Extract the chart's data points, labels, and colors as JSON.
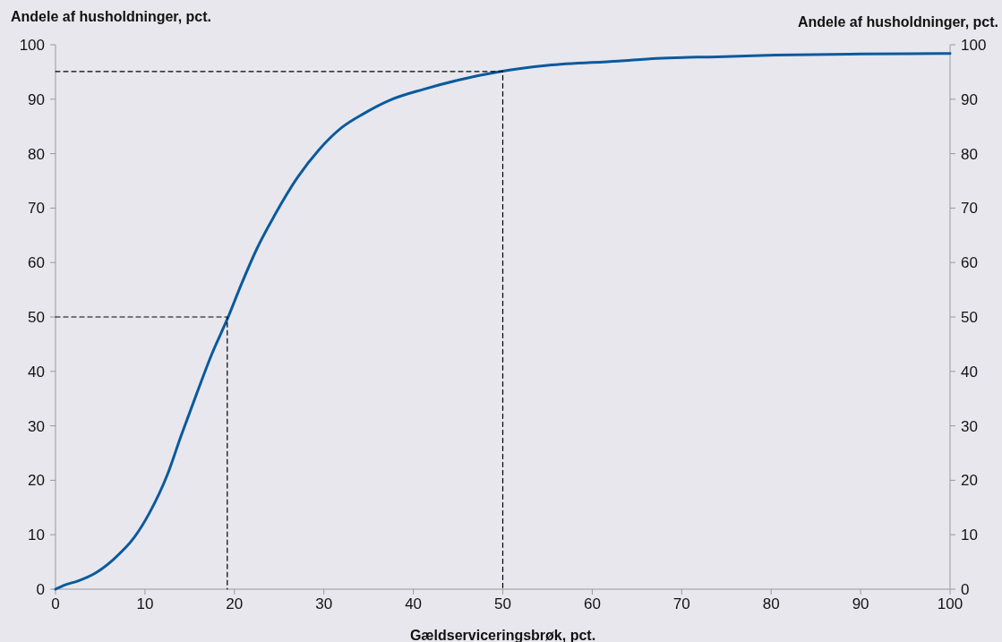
{
  "chart_data": {
    "type": "line",
    "xlabel": "Gældserviceringsbrøk, pct.",
    "ylabel": "Andele af husholdninger, pct.",
    "y2label": "Andele af husholdninger, pct.",
    "xlim": [
      0,
      100
    ],
    "xticks": [
      0,
      10,
      20,
      30,
      40,
      50,
      60,
      70,
      80,
      90,
      100
    ],
    "ylim": [
      0,
      100
    ],
    "yticks": [
      0,
      10,
      20,
      30,
      40,
      50,
      60,
      70,
      80,
      90,
      100
    ],
    "y2lim": [
      0,
      100
    ],
    "y2ticks": [
      0,
      10,
      20,
      30,
      40,
      50,
      60,
      70,
      80,
      90,
      100
    ],
    "marker": "none",
    "series": [
      {
        "color": "#0a5a9c",
        "line_style": "solid",
        "x": [
          0,
          1.1,
          2.5,
          4.5,
          6.5,
          8.8,
          10.5,
          12.5,
          14,
          15.8,
          17.5,
          19.2,
          20.8,
          22.5,
          24.5,
          27,
          29.5,
          32,
          34.5,
          37.5,
          41.1,
          45,
          49.8,
          55,
          62.9,
          67.2,
          74,
          80.5,
          90,
          100
        ],
        "values": [
          0,
          0.8,
          1.5,
          3,
          5.5,
          9.5,
          14,
          21,
          28,
          36,
          43.3,
          49.6,
          56.1,
          62.5,
          68.7,
          75.5,
          80.8,
          84.8,
          87.4,
          89.9,
          91.8,
          93.5,
          95.1,
          96.2,
          97,
          97.5,
          97.8,
          98.1,
          98.3,
          98.4
        ]
      },
      {
        "color": "#000000",
        "line_style": "dashed",
        "x": [
          0,
          19.2,
          19.2
        ],
        "values": [
          50,
          50,
          0
        ]
      },
      {
        "color": "#000000",
        "line_style": "dashed",
        "x": [
          0,
          50,
          50
        ],
        "values": [
          95.1,
          95.1,
          0
        ]
      }
    ]
  }
}
